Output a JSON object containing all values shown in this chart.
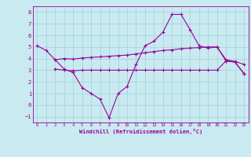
{
  "xlabel": "Windchill (Refroidissement éolien,°C)",
  "bg_color": "#c8eaf0",
  "grid_color": "#aad4dc",
  "line_color": "#990099",
  "line1_x": [
    0,
    1,
    2,
    3,
    4,
    5,
    6,
    7,
    8,
    9,
    10,
    11,
    12,
    13,
    14,
    15,
    16,
    17,
    18,
    19,
    20,
    21,
    22,
    23
  ],
  "line1_y": [
    5.1,
    4.7,
    3.9,
    3.1,
    2.8,
    1.5,
    1.0,
    0.5,
    -1.1,
    1.0,
    1.6,
    3.5,
    5.1,
    5.5,
    6.3,
    7.8,
    7.8,
    6.5,
    5.1,
    4.9,
    5.0,
    3.8,
    3.7,
    2.7
  ],
  "line2_x": [
    2,
    3,
    4,
    5,
    6,
    7,
    8,
    9,
    10,
    11,
    12,
    13,
    14,
    15,
    16,
    17,
    18,
    19,
    20,
    21,
    22,
    23
  ],
  "line2_y": [
    3.9,
    4.0,
    3.95,
    4.05,
    4.1,
    4.15,
    4.2,
    4.25,
    4.3,
    4.4,
    4.5,
    4.6,
    4.7,
    4.75,
    4.85,
    4.9,
    4.95,
    5.0,
    5.0,
    3.9,
    3.75,
    3.5
  ],
  "line3_x": [
    2,
    3,
    4,
    5,
    6,
    7,
    8,
    9,
    10,
    11,
    12,
    13,
    14,
    15,
    16,
    17,
    18,
    19,
    20,
    21,
    22,
    23
  ],
  "line3_y": [
    3.1,
    3.0,
    2.95,
    3.0,
    3.0,
    3.0,
    3.0,
    3.0,
    3.0,
    3.0,
    3.0,
    3.0,
    3.0,
    3.0,
    3.0,
    3.0,
    3.0,
    3.0,
    3.0,
    3.8,
    3.7,
    2.7
  ],
  "xlim": [
    -0.5,
    23.5
  ],
  "ylim": [
    -1.5,
    8.5
  ],
  "yticks": [
    -1,
    0,
    1,
    2,
    3,
    4,
    5,
    6,
    7,
    8
  ],
  "xticks": [
    0,
    1,
    2,
    3,
    4,
    5,
    6,
    7,
    8,
    9,
    10,
    11,
    12,
    13,
    14,
    15,
    16,
    17,
    18,
    19,
    20,
    21,
    22,
    23
  ]
}
